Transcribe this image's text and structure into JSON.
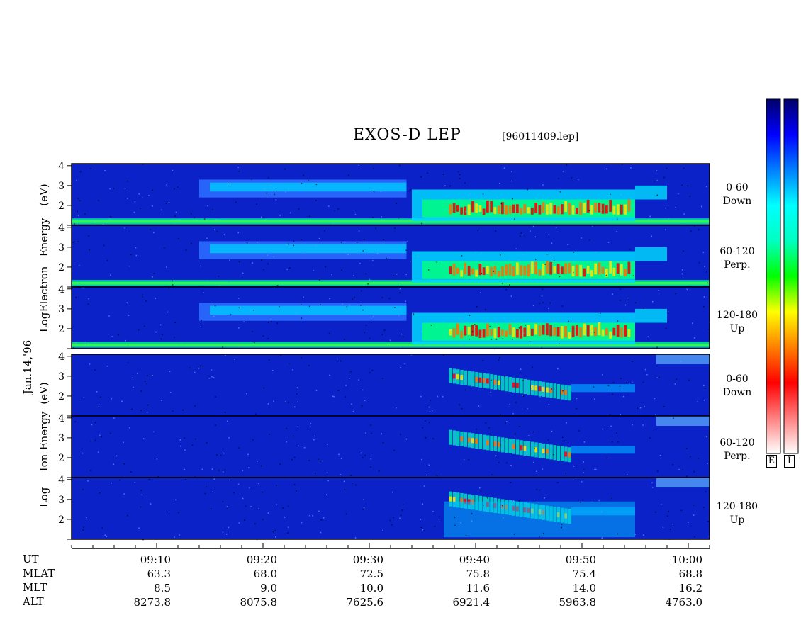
{
  "title": "EXOS-D LEP",
  "file_label": "[96011409.lep]",
  "date_label": "Jan.14,'96",
  "colorbar_labels": [
    "E",
    "I"
  ],
  "groups": [
    {
      "species": "Electron",
      "ylabel_parts": [
        "Log",
        "Electron",
        "Energy",
        "(eV)"
      ]
    },
    {
      "species": "Ion",
      "ylabel_parts": [
        "Log",
        "Ion",
        "Energy",
        "(eV)"
      ]
    }
  ],
  "channels": [
    {
      "line1": "0-60",
      "line2": "Down"
    },
    {
      "line1": "60-120",
      "line2": "Perp."
    },
    {
      "line1": "120-180",
      "line2": "Up"
    },
    {
      "line1": "0-60",
      "line2": "Down"
    },
    {
      "line1": "60-120",
      "line2": "Perp."
    },
    {
      "line1": "120-180",
      "line2": "Up"
    }
  ],
  "ephemeris": {
    "labels": [
      "UT",
      "MLAT",
      "MLT",
      "ALT"
    ],
    "columns": [
      {
        "UT": "09:10",
        "MLAT": "63.3",
        "MLT": "8.5",
        "ALT": "8273.8"
      },
      {
        "UT": "09:20",
        "MLAT": "68.0",
        "MLT": "9.0",
        "ALT": "8075.8"
      },
      {
        "UT": "09:30",
        "MLAT": "72.5",
        "MLT": "10.0",
        "ALT": "7625.6"
      },
      {
        "UT": "09:40",
        "MLAT": "75.8",
        "MLT": "11.6",
        "ALT": "6921.4"
      },
      {
        "UT": "09:50",
        "MLAT": "75.4",
        "MLT": "14.0",
        "ALT": "5963.8"
      },
      {
        "UT": "10:00",
        "MLAT": "68.8",
        "MLT": "16.2",
        "ALT": "4763.0"
      }
    ]
  },
  "chart_data": {
    "type": "heatmap",
    "title": "EXOS-D LEP",
    "x_axis": {
      "label": "UT",
      "range": [
        "09:02",
        "10:02"
      ],
      "major_ticks": [
        "09:10",
        "09:20",
        "09:30",
        "09:40",
        "09:50",
        "10:00"
      ],
      "minor_tick_minutes": 2
    },
    "y_axis": {
      "label": "Log Energy (eV)",
      "range": [
        1,
        4.1
      ],
      "ticks": [
        "2",
        "3",
        "4"
      ]
    },
    "colorscale": [
      "#0000a0",
      "#0040ff",
      "#00c0ff",
      "#00ffc0",
      "#00ff00",
      "#ffff00",
      "#ff8000",
      "#ff0000",
      "#ffffff"
    ],
    "panels": [
      {
        "species": "Electron",
        "pitch_angle": "0-60",
        "direction": "Down"
      },
      {
        "species": "Electron",
        "pitch_angle": "60-120",
        "direction": "Perp."
      },
      {
        "species": "Electron",
        "pitch_angle": "120-180",
        "direction": "Up"
      },
      {
        "species": "Ion",
        "pitch_angle": "0-60",
        "direction": "Down"
      },
      {
        "species": "Ion",
        "pitch_angle": "60-120",
        "direction": "Perp."
      },
      {
        "species": "Ion",
        "pitch_angle": "120-180",
        "direction": "Up"
      }
    ]
  }
}
